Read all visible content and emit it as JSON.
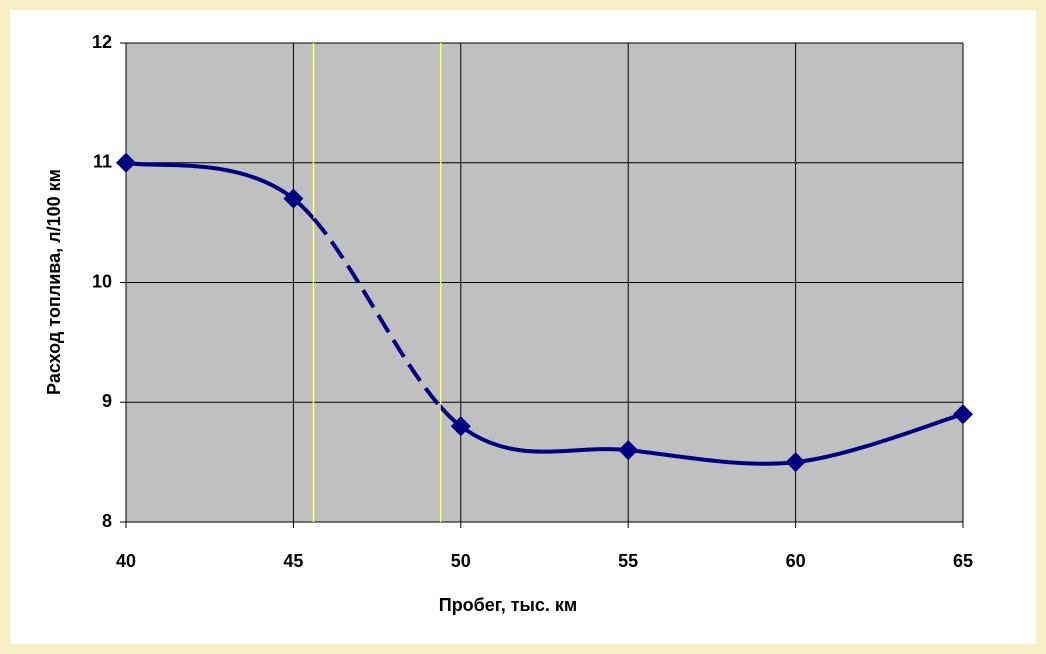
{
  "chart_data": {
    "type": "line",
    "x_label": "Пробег, тыс. км",
    "y_label": "Расход топлива, л/100 км",
    "x": [
      40,
      45,
      50,
      55,
      60,
      65
    ],
    "series": [
      {
        "color": "#000080",
        "values": [
          11,
          10.7,
          8.8,
          8.6,
          8.5,
          8.9
        ]
      }
    ],
    "xlim": [
      40,
      65
    ],
    "xticks": [
      40,
      45,
      50,
      55,
      60,
      65
    ],
    "ylim": [
      8,
      12
    ],
    "yticks": [
      8,
      9,
      10,
      11,
      12
    ],
    "grid": true,
    "smooth": true,
    "marker": "diamond",
    "dashed_between": [
      45.6,
      49.4
    ],
    "marker_line_color": "#ffff66"
  }
}
